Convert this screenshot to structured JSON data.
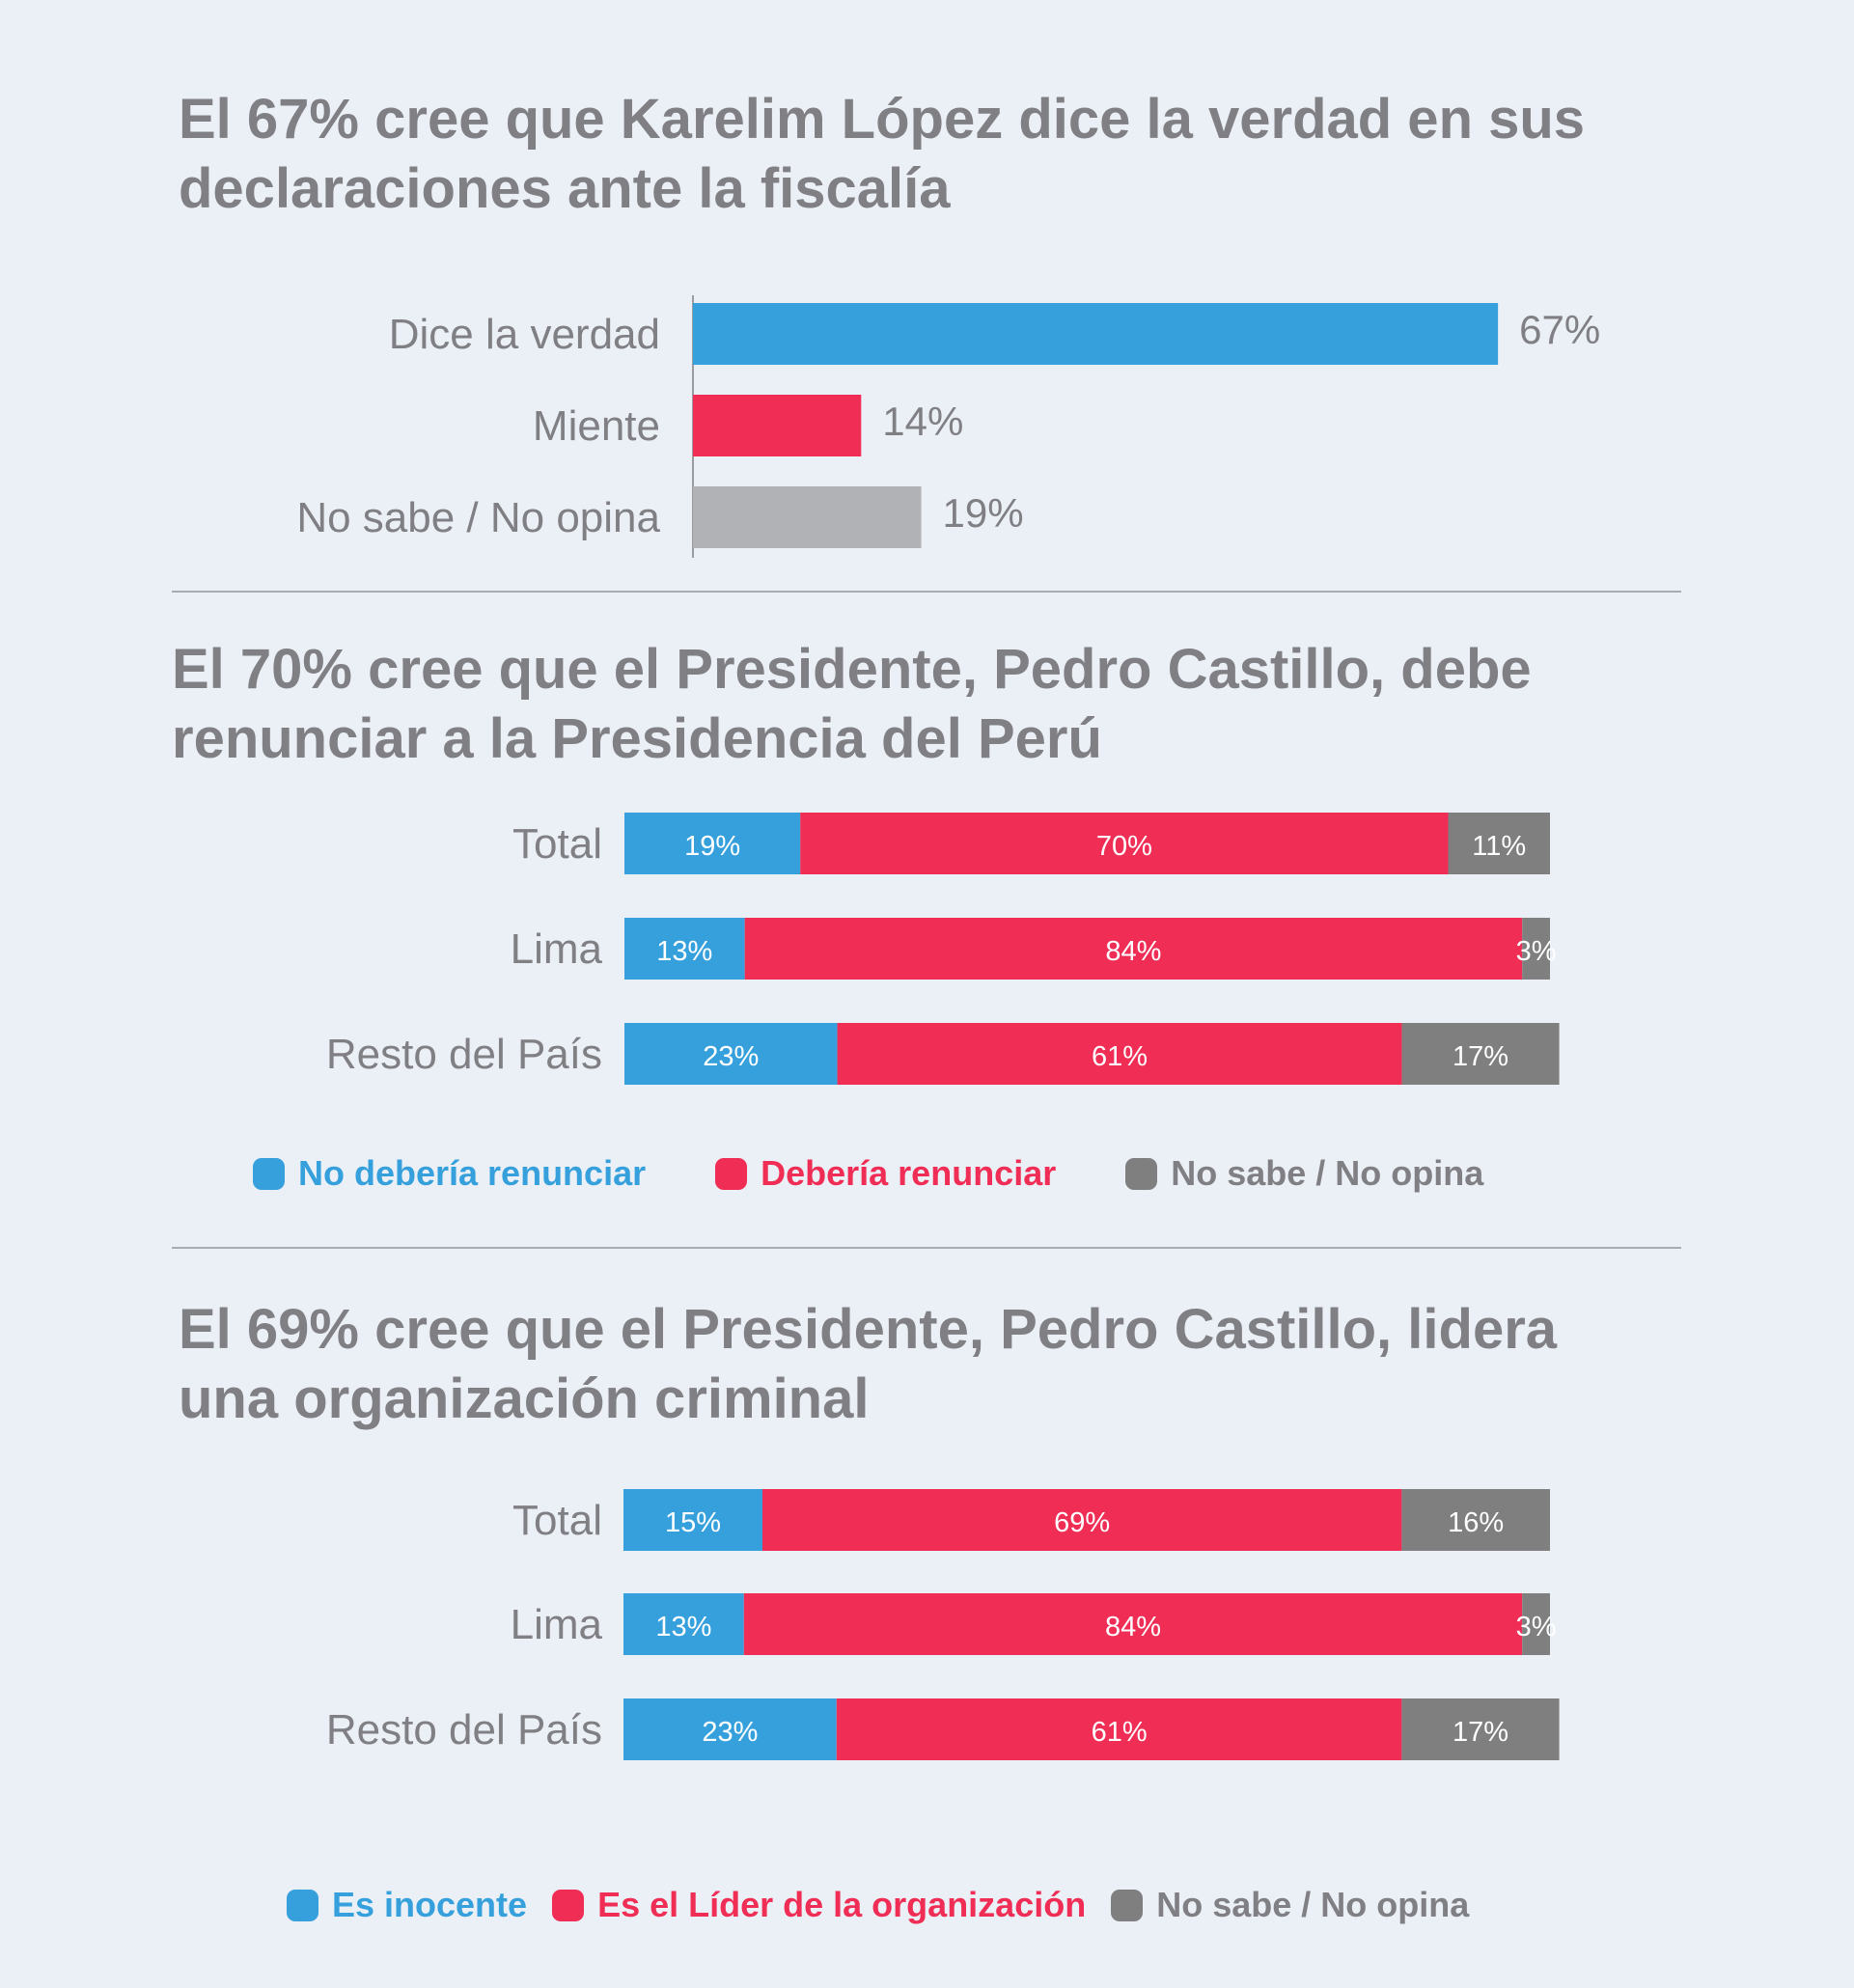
{
  "colors": {
    "blue": "#36a0dc",
    "red": "#ef2d55",
    "light_gray": "#b1b2b5",
    "dark_gray": "#7f7f80",
    "text": "#7f7f84"
  },
  "chart_data": [
    {
      "type": "bar",
      "orientation": "horizontal",
      "title": "El 67% cree que Karelim López dice la verdad en sus declaraciones ante la fiscalía",
      "categories": [
        "Dice la verdad",
        "Miente",
        "No sabe / No opina"
      ],
      "values": [
        67,
        14,
        19
      ],
      "labels": [
        "67%",
        "14%",
        "19%"
      ],
      "bar_colors": [
        "#36a0dc",
        "#ef2d55",
        "#b1b2b5"
      ],
      "xlim": [
        0,
        100
      ]
    },
    {
      "type": "bar",
      "orientation": "horizontal",
      "stacked": true,
      "title": "El 70% cree que el Presidente, Pedro Castillo, debe renunciar a la Presidencia del Perú",
      "categories": [
        "Total",
        "Lima",
        "Resto del País"
      ],
      "series": [
        {
          "name": "No debería renunciar",
          "values": [
            19,
            13,
            23
          ],
          "labels": [
            "19%",
            "13%",
            "23%"
          ],
          "color": "#36a0dc"
        },
        {
          "name": "Debería renunciar",
          "values": [
            70,
            84,
            61
          ],
          "labels": [
            "70%",
            "84%",
            "61%"
          ],
          "color": "#ef2d55"
        },
        {
          "name": "No sabe / No opina",
          "values": [
            11,
            3,
            17
          ],
          "labels": [
            "11%",
            "3%",
            "17%"
          ],
          "color": "#7f7f80"
        }
      ],
      "legend_position": "bottom"
    },
    {
      "type": "bar",
      "orientation": "horizontal",
      "stacked": true,
      "title": "El 69% cree que el Presidente, Pedro Castillo, lidera una organización criminal",
      "categories": [
        "Total",
        "Lima",
        "Resto del País"
      ],
      "series": [
        {
          "name": "Es inocente",
          "values": [
            15,
            13,
            23
          ],
          "labels": [
            "15%",
            "13%",
            "23%"
          ],
          "color": "#36a0dc"
        },
        {
          "name": "Es el Líder de la organización",
          "values": [
            69,
            84,
            61
          ],
          "labels": [
            "69%",
            "84%",
            "61%"
          ],
          "color": "#ef2d55"
        },
        {
          "name": "No sabe / No opina",
          "values": [
            16,
            3,
            17
          ],
          "labels": [
            "16%",
            "3%",
            "17%"
          ],
          "color": "#7f7f80"
        }
      ],
      "legend_position": "bottom"
    }
  ]
}
